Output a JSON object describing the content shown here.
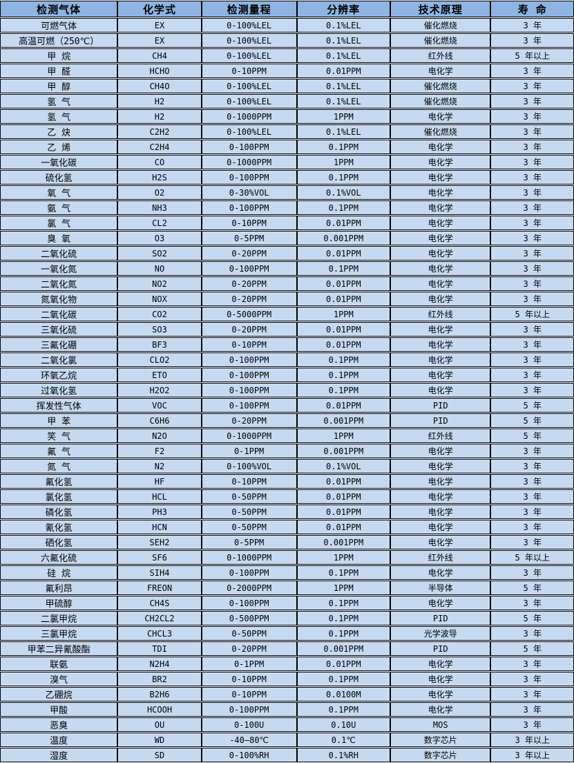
{
  "table": {
    "colors": {
      "header_bg": "#8db4e2",
      "row_bg": "#c5d9f1",
      "border": "#000000",
      "text": "#000000"
    },
    "columns": [
      "检测气体",
      "化学式",
      "检测量程",
      "分辨率",
      "技术原理",
      "寿 命"
    ],
    "rows": [
      [
        "可燃气体",
        "EX",
        "0-100%LEL",
        "0.1%LEL",
        "催化燃烧",
        "3 年"
      ],
      [
        "高温可燃（250℃）",
        "EX",
        "0-100%LEL",
        "0.1%LEL",
        "催化燃烧",
        "3 年"
      ],
      [
        "甲 烷",
        "CH4",
        "0-100%LEL",
        "0.1%LEL",
        "红外线",
        "5 年以上"
      ],
      [
        "甲 醛",
        "HCHO",
        "0-10PPM",
        "0.01PPM",
        "电化学",
        "3 年"
      ],
      [
        "甲 醇",
        "CH4O",
        "0-100%LEL",
        "0.1%LEL",
        "催化燃烧",
        "3 年"
      ],
      [
        "氢 气",
        "H2",
        "0-100%LEL",
        "0.1%LEL",
        "催化燃烧",
        "3 年"
      ],
      [
        "氢 气",
        "H2",
        "0-1000PPM",
        "1PPM",
        "电化学",
        "3 年"
      ],
      [
        "乙 炔",
        "C2H2",
        "0-100%LEL",
        "0.1%LEL",
        "催化燃烧",
        "3 年"
      ],
      [
        "乙 烯",
        "C2H4",
        "0-100PPM",
        "0.1PPM",
        "电化学",
        "3 年"
      ],
      [
        "一氧化碳",
        "CO",
        "0-1000PPM",
        "1PPM",
        "电化学",
        "3 年"
      ],
      [
        "硫化氢",
        "H2S",
        "0-100PPM",
        "0.1PPM",
        "电化学",
        "3 年"
      ],
      [
        "氧 气",
        "O2",
        "0-30%VOL",
        "0.1%VOL",
        "电化学",
        "3 年"
      ],
      [
        "氨 气",
        "NH3",
        "0-100PPM",
        "0.1PPM",
        "电化学",
        "3 年"
      ],
      [
        "氯 气",
        "CL2",
        "0-10PPM",
        "0.01PPM",
        "电化学",
        "3 年"
      ],
      [
        "臭 氧",
        "O3",
        "0-5PPM",
        "0.001PPM",
        "电化学",
        "3 年"
      ],
      [
        "二氧化硫",
        "SO2",
        "0-20PPM",
        "0.01PPM",
        "电化学",
        "3 年"
      ],
      [
        "一氧化氮",
        "NO",
        "0-100PPM",
        "0.1PPM",
        "电化学",
        "3 年"
      ],
      [
        "二氧化氮",
        "NO2",
        "0-20PPM",
        "0.01PPM",
        "电化学",
        "3 年"
      ],
      [
        "氮氧化物",
        "NOX",
        "0-20PPM",
        "0.01PPM",
        "电化学",
        "3 年"
      ],
      [
        "二氧化碳",
        "CO2",
        "0-5000PPM",
        "1PPM",
        "红外线",
        "5 年以上"
      ],
      [
        "三氧化硫",
        "SO3",
        "0-20PPM",
        "0.01PPM",
        "电化学",
        "3 年"
      ],
      [
        "三氟化硼",
        "BF3",
        "0-10PPM",
        "0.01PPM",
        "电化学",
        "3 年"
      ],
      [
        "二氧化氯",
        "CLO2",
        "0-100PPM",
        "0.1PPM",
        "电化学",
        "3 年"
      ],
      [
        "环氧乙烷",
        "ETO",
        "0-100PPM",
        "0.1PPM",
        "电化学",
        "3 年"
      ],
      [
        "过氧化氢",
        "H2O2",
        "0-100PPM",
        "0.1PPM",
        "电化学",
        "3 年"
      ],
      [
        "挥发性气体",
        "VOC",
        "0-100PPM",
        "0.01PPM",
        "PID",
        "5 年"
      ],
      [
        "甲 苯",
        "C6H6",
        "0-20PPM",
        "0.001PPM",
        "PID",
        "5 年"
      ],
      [
        "笑 气",
        "N2O",
        "0-1000PPM",
        "1PPM",
        "红外线",
        "5 年"
      ],
      [
        "氟 气",
        "F2",
        "0-1PPM",
        "0.001PPM",
        "电化学",
        "3 年"
      ],
      [
        "氮 气",
        "N2",
        "0-100%VOL",
        "0.1%VOL",
        "电化学",
        "3 年"
      ],
      [
        "氟化氢",
        "HF",
        "0-10PPM",
        "0.01PPM",
        "电化学",
        "3 年"
      ],
      [
        "氯化氢",
        "HCL",
        "0-50PPM",
        "0.01PPM",
        "电化学",
        "3 年"
      ],
      [
        "磷化氢",
        "PH3",
        "0-50PPM",
        "0.01PPM",
        "电化学",
        "3 年"
      ],
      [
        "氰化氢",
        "HCN",
        "0-50PPM",
        "0.01PPM",
        "电化学",
        "3 年"
      ],
      [
        "硒化氢",
        "SEH2",
        "0-5PPM",
        "0.001PPM",
        "电化学",
        "3 年"
      ],
      [
        "六氟化硫",
        "SF6",
        "0-1000PPM",
        "1PPM",
        "红外线",
        "5 年以上"
      ],
      [
        "硅 烷",
        "SIH4",
        "0-100PPM",
        "0.1PPM",
        "电化学",
        "3 年"
      ],
      [
        "氟利昂",
        "FREON",
        "0-2000PPM",
        "1PPM",
        "半导体",
        "5 年"
      ],
      [
        "甲硫醇",
        "CH4S",
        "0-100PPM",
        "0.1PPM",
        "电化学",
        "3 年"
      ],
      [
        "二氯甲烷",
        "CH2CL2",
        "0-500PPM",
        "0.1PPM",
        "PID",
        "5 年"
      ],
      [
        "三氯甲烷",
        "CHCL3",
        "0-50PPM",
        "0.1PPM",
        "光学波导",
        "3 年"
      ],
      [
        "甲苯二异氰酸酯",
        "TDI",
        "0-20PPM",
        "0.001PPM",
        "PID",
        "5 年"
      ],
      [
        "联氨",
        "N2H4",
        "0-1PPM",
        "0.01PPM",
        "电化学",
        "3 年"
      ],
      [
        "溴气",
        "BR2",
        "0-10PPM",
        "0.1PPM",
        "电化学",
        "3 年"
      ],
      [
        "乙硼烷",
        "B2H6",
        "0-10PPM",
        "0.0100M",
        "电化学",
        "3 年"
      ],
      [
        "甲酸",
        "HCOOH",
        "0-100PPM",
        "0.1PPM",
        "电化学",
        "3 年"
      ],
      [
        "恶臭",
        "OU",
        "0-100U",
        "0.10U",
        "MOS",
        "3 年"
      ],
      [
        "温度",
        "WD",
        "-40—80℃",
        "0.1℃",
        "数字芯片",
        "3 年以上"
      ],
      [
        "湿度",
        "SD",
        "0-100%RH",
        "0.1%RH",
        "数字芯片",
        "3 年以上"
      ]
    ]
  }
}
